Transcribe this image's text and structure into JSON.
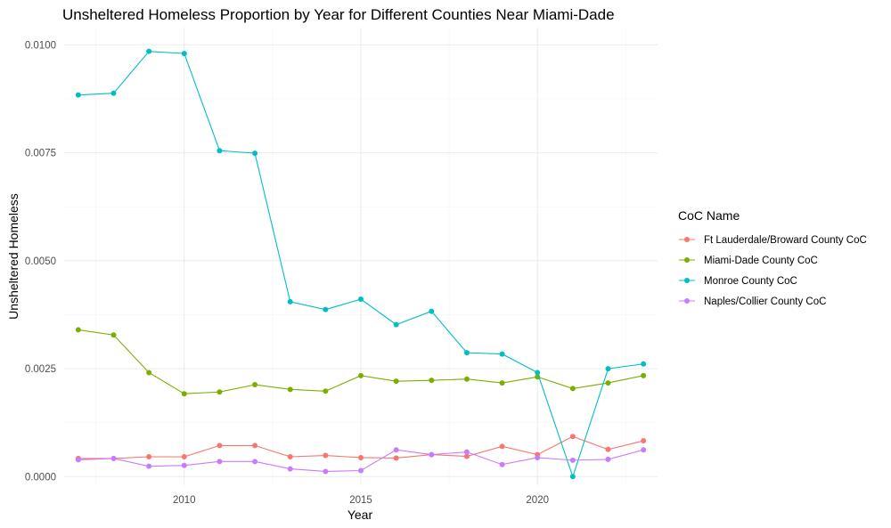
{
  "chart_data": {
    "type": "line",
    "title": "Unsheltered Homeless Proportion by Year for Different Counties Near Miami-Dade",
    "xlabel": "Year",
    "ylabel": "Unsheltered Homeless",
    "xlim": [
      2006.6,
      2023.4
    ],
    "ylim": [
      -0.0002,
      0.0104
    ],
    "x_ticks": [
      2010,
      2015,
      2020
    ],
    "x_tick_labels": [
      "2010",
      "2015",
      "2020"
    ],
    "y_ticks": [
      0.0,
      0.0025,
      0.005,
      0.0075,
      0.01
    ],
    "y_tick_labels": [
      "0.0000",
      "0.0025",
      "0.0050",
      "0.0075",
      "0.0100"
    ],
    "grid": true,
    "legend": {
      "title": "CoC Name",
      "position": "right"
    },
    "x": [
      2007,
      2008,
      2009,
      2010,
      2011,
      2012,
      2013,
      2014,
      2015,
      2016,
      2017,
      2018,
      2019,
      2020,
      2021,
      2022,
      2023
    ],
    "series": [
      {
        "name": "Ft Lauderdale/Broward County CoC",
        "color": "#F8766D",
        "values": [
          0.00042,
          0.00042,
          0.00046,
          0.00046,
          0.00072,
          0.00072,
          0.00046,
          0.00049,
          0.00044,
          0.00043,
          0.00051,
          0.00047,
          0.0007,
          0.00051,
          0.00093,
          0.00063,
          0.00083
        ]
      },
      {
        "name": "Miami-Dade County CoC",
        "color": "#7CAE00",
        "values": [
          0.0034,
          0.00328,
          0.00241,
          0.00192,
          0.00196,
          0.00213,
          0.00202,
          0.00198,
          0.00234,
          0.00221,
          0.00223,
          0.00226,
          0.00217,
          0.00231,
          0.00204,
          0.00217,
          0.00234
        ]
      },
      {
        "name": "Monroe County CoC",
        "color": "#00BFC4",
        "values": [
          0.00884,
          0.00888,
          0.00985,
          0.0098,
          0.00755,
          0.00749,
          0.00405,
          0.00387,
          0.00411,
          0.00352,
          0.00383,
          0.00287,
          0.00284,
          0.00241,
          0.0,
          0.0025,
          0.00261
        ]
      },
      {
        "name": "Naples/Collier County CoC",
        "color": "#C77CFF",
        "values": [
          0.00039,
          0.00042,
          0.00024,
          0.00026,
          0.00035,
          0.00035,
          0.00018,
          0.00012,
          0.00014,
          0.00062,
          0.00051,
          0.00057,
          0.00028,
          0.00044,
          0.00038,
          0.0004,
          0.00062
        ]
      }
    ]
  }
}
